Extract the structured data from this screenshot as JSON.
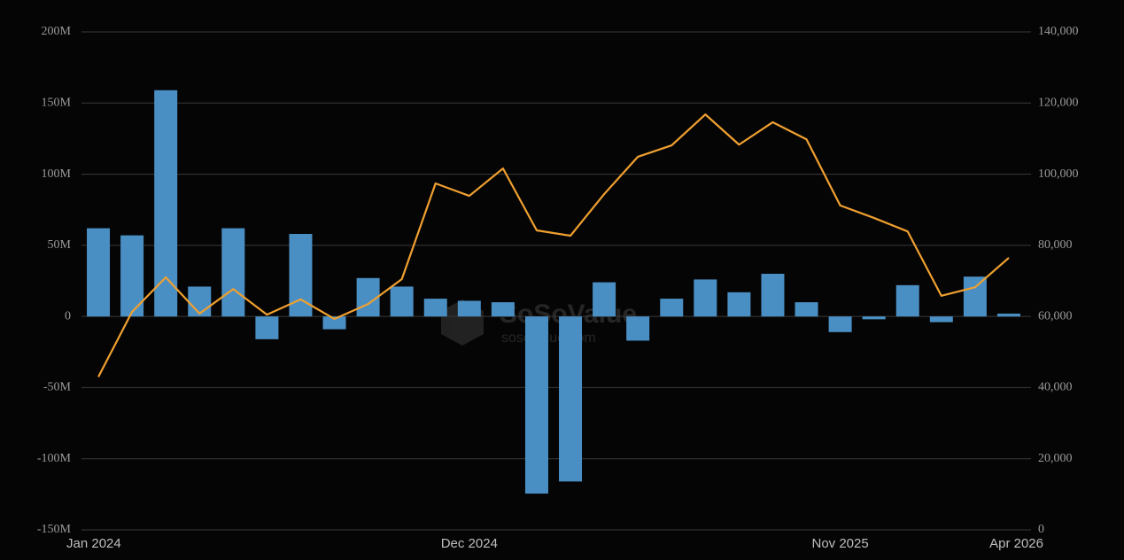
{
  "chart_data": {
    "type": "bar-line",
    "categories": [
      "Jan 2024",
      null,
      null,
      null,
      null,
      null,
      null,
      null,
      null,
      null,
      null,
      "Dec 2024",
      null,
      null,
      null,
      null,
      null,
      null,
      null,
      null,
      null,
      null,
      "Nov 2025",
      null,
      null,
      null,
      null,
      "Apr 2026"
    ],
    "series": [
      {
        "type": "bar",
        "color": "#4a8fc4",
        "values": [
          62000000,
          57000000,
          159000000,
          21000000,
          62000000,
          -16000000,
          58000000,
          -9000000,
          27000000,
          21000000,
          12500000,
          11000000,
          10000000,
          -124500000,
          -116000000,
          24000000,
          -17000000,
          12500000,
          26000000,
          17000000,
          30000000,
          10000000,
          -11000000,
          -2000000,
          22000000,
          -4000000,
          28000000,
          2000000
        ]
      },
      {
        "type": "line",
        "axis": "y2",
        "color": "#f0a030",
        "values": [
          43000,
          61300,
          71000,
          60800,
          67700,
          60500,
          64800,
          59300,
          63500,
          70500,
          97400,
          93900,
          101600,
          84200,
          82700,
          94400,
          104900,
          108100,
          116800,
          108300,
          114600,
          109800,
          91200,
          87700,
          83900,
          65800,
          68200,
          76500
        ]
      }
    ],
    "ylim": [
      -150000000,
      200000000
    ],
    "yticks": [
      {
        "value": -150000000,
        "label": "-150M"
      },
      {
        "value": -100000000,
        "label": "-100M"
      },
      {
        "value": -50000000,
        "label": "-50M"
      },
      0,
      {
        "value": 50000000,
        "label": "50M"
      },
      {
        "value": 100000000,
        "label": "100M"
      },
      {
        "value": 150000000,
        "label": "150M"
      },
      {
        "value": 200000000,
        "label": "200M"
      }
    ],
    "y2lim": [
      0,
      140000
    ],
    "y2ticks": [
      0,
      {
        "value": 20000,
        "label": "20,000"
      },
      {
        "value": 40000,
        "label": "40,000"
      },
      {
        "value": 60000,
        "label": "60,000"
      },
      {
        "value": 80000,
        "label": "80,000"
      },
      {
        "value": 100000,
        "label": "100,000"
      },
      {
        "value": 120000,
        "label": "120,000"
      },
      {
        "value": 140000,
        "label": "140,000"
      }
    ],
    "grid": true,
    "watermark": {
      "brand": "SoSoValue",
      "url": "sosovalue.com"
    }
  }
}
